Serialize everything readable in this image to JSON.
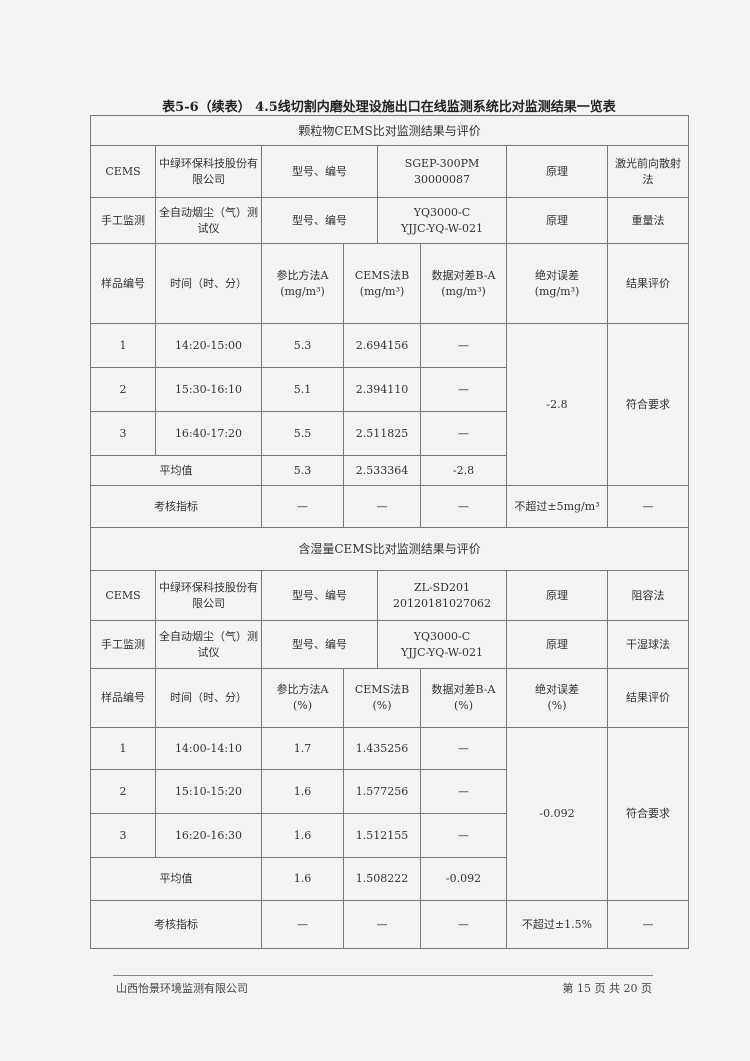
{
  "title": "表5-6（续表） 4.5线切割内磨处理设施出口在线监测系统比对监测结果一览表",
  "sections": [
    {
      "heading": "颗粒物CEMS比对监测结果与评价",
      "cems": {
        "label": "CEMS",
        "maker": "中绿环保科技股份有限公司",
        "model_label": "型号、编号",
        "model": "SGEP-300PM",
        "serial": "30000087",
        "principle_label": "原理",
        "principle": "激光前向散射法"
      },
      "manual": {
        "label": "手工监测",
        "maker": "全自动烟尘（气）测试仪",
        "model_label": "型号、编号",
        "model": "YQ3000-C",
        "serial": "YJJC-YQ-W-021",
        "principle_label": "原理",
        "principle": "重量法"
      },
      "headers": {
        "sample": "样品编号",
        "time": "时间（时、分）",
        "a": "参比方法A",
        "b": "CEMS法B",
        "diff": "数据对差B-A",
        "abs": "绝对误差",
        "result": "结果评价",
        "unit": "(mg/m³)"
      },
      "rows": [
        {
          "no": "1",
          "time": "14:20-15:00",
          "a": "5.3",
          "b": "2.694156",
          "diff": "—"
        },
        {
          "no": "2",
          "time": "15:30-16:10",
          "a": "5.1",
          "b": "2.394110",
          "diff": "—"
        },
        {
          "no": "3",
          "time": "16:40-17:20",
          "a": "5.5",
          "b": "2.511825",
          "diff": "—"
        }
      ],
      "abs_error": "-2.8",
      "result": "符合要求",
      "avg": {
        "label": "平均值",
        "a": "5.3",
        "b": "2.533364",
        "diff": "-2.8"
      },
      "criteria": {
        "label": "考核指标",
        "a": "—",
        "b": "—",
        "diff": "—",
        "abs": "不超过±5mg/m³",
        "result": "—"
      }
    },
    {
      "heading": "含湿量CEMS比对监测结果与评价",
      "cems": {
        "label": "CEMS",
        "maker": "中绿环保科技股份有限公司",
        "model_label": "型号、编号",
        "model": "ZL-SD201",
        "serial": "20120181027062",
        "principle_label": "原理",
        "principle": "阻容法"
      },
      "manual": {
        "label": "手工监测",
        "maker": "全自动烟尘（气）测试仪",
        "model_label": "型号、编号",
        "model": "YQ3000-C",
        "serial": "YJJC-YQ-W-021",
        "principle_label": "原理",
        "principle": "干湿球法"
      },
      "headers": {
        "sample": "样品编号",
        "time": "时间（时、分）",
        "a": "参比方法A",
        "b": "CEMS法B",
        "diff": "数据对差B-A",
        "abs": "绝对误差",
        "result": "结果评价",
        "unit": "(%)"
      },
      "rows": [
        {
          "no": "1",
          "time": "14:00-14:10",
          "a": "1.7",
          "b": "1.435256",
          "diff": "—"
        },
        {
          "no": "2",
          "time": "15:10-15:20",
          "a": "1.6",
          "b": "1.577256",
          "diff": "—"
        },
        {
          "no": "3",
          "time": "16:20-16:30",
          "a": "1.6",
          "b": "1.512155",
          "diff": "—"
        }
      ],
      "abs_error": "-0.092",
      "result": "符合要求",
      "avg": {
        "label": "平均值",
        "a": "1.6",
        "b": "1.508222",
        "diff": "-0.092"
      },
      "criteria": {
        "label": "考核指标",
        "a": "—",
        "b": "—",
        "diff": "—",
        "abs": "不超过±1.5%",
        "result": "—"
      }
    }
  ],
  "footer": {
    "company": "山西怡景环境监测有限公司",
    "page": "第 15 页 共 20 页"
  }
}
